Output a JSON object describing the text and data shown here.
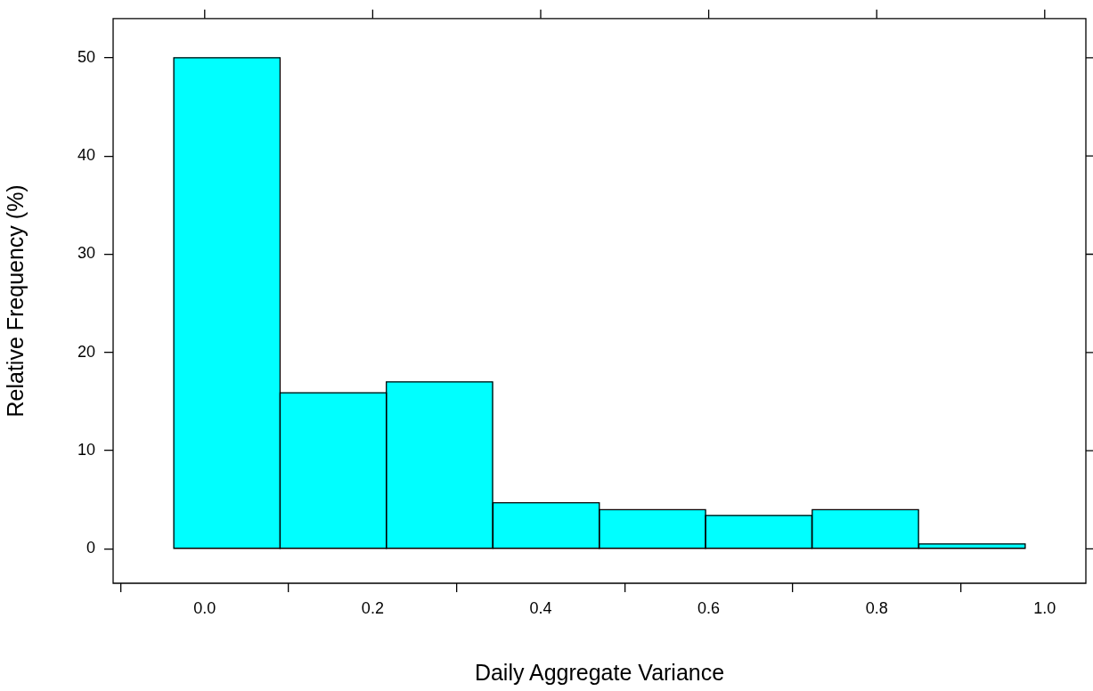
{
  "chart_data": {
    "type": "histogram",
    "xlabel": "Daily Aggregate Variance",
    "ylabel": "Relative Frequency (%)",
    "bins": [
      -0.037,
      0.09,
      0.216,
      0.343,
      0.47,
      0.596,
      0.723,
      0.85,
      0.977
    ],
    "values": [
      50,
      15.9,
      17,
      4.7,
      4,
      3.4,
      4,
      0.5
    ],
    "color": "#00ffff",
    "xlim": [
      -0.109,
      1.049
    ],
    "ylim": [
      -3.5,
      54
    ],
    "xticks": [
      {
        "value": 0,
        "label": "0.0"
      },
      0.2,
      0.4,
      0.6,
      0.8,
      {
        "value": 1,
        "label": "1.0"
      }
    ],
    "yticks": [
      0,
      10,
      20,
      30,
      40,
      50
    ],
    "grid": false,
    "legend": false
  }
}
